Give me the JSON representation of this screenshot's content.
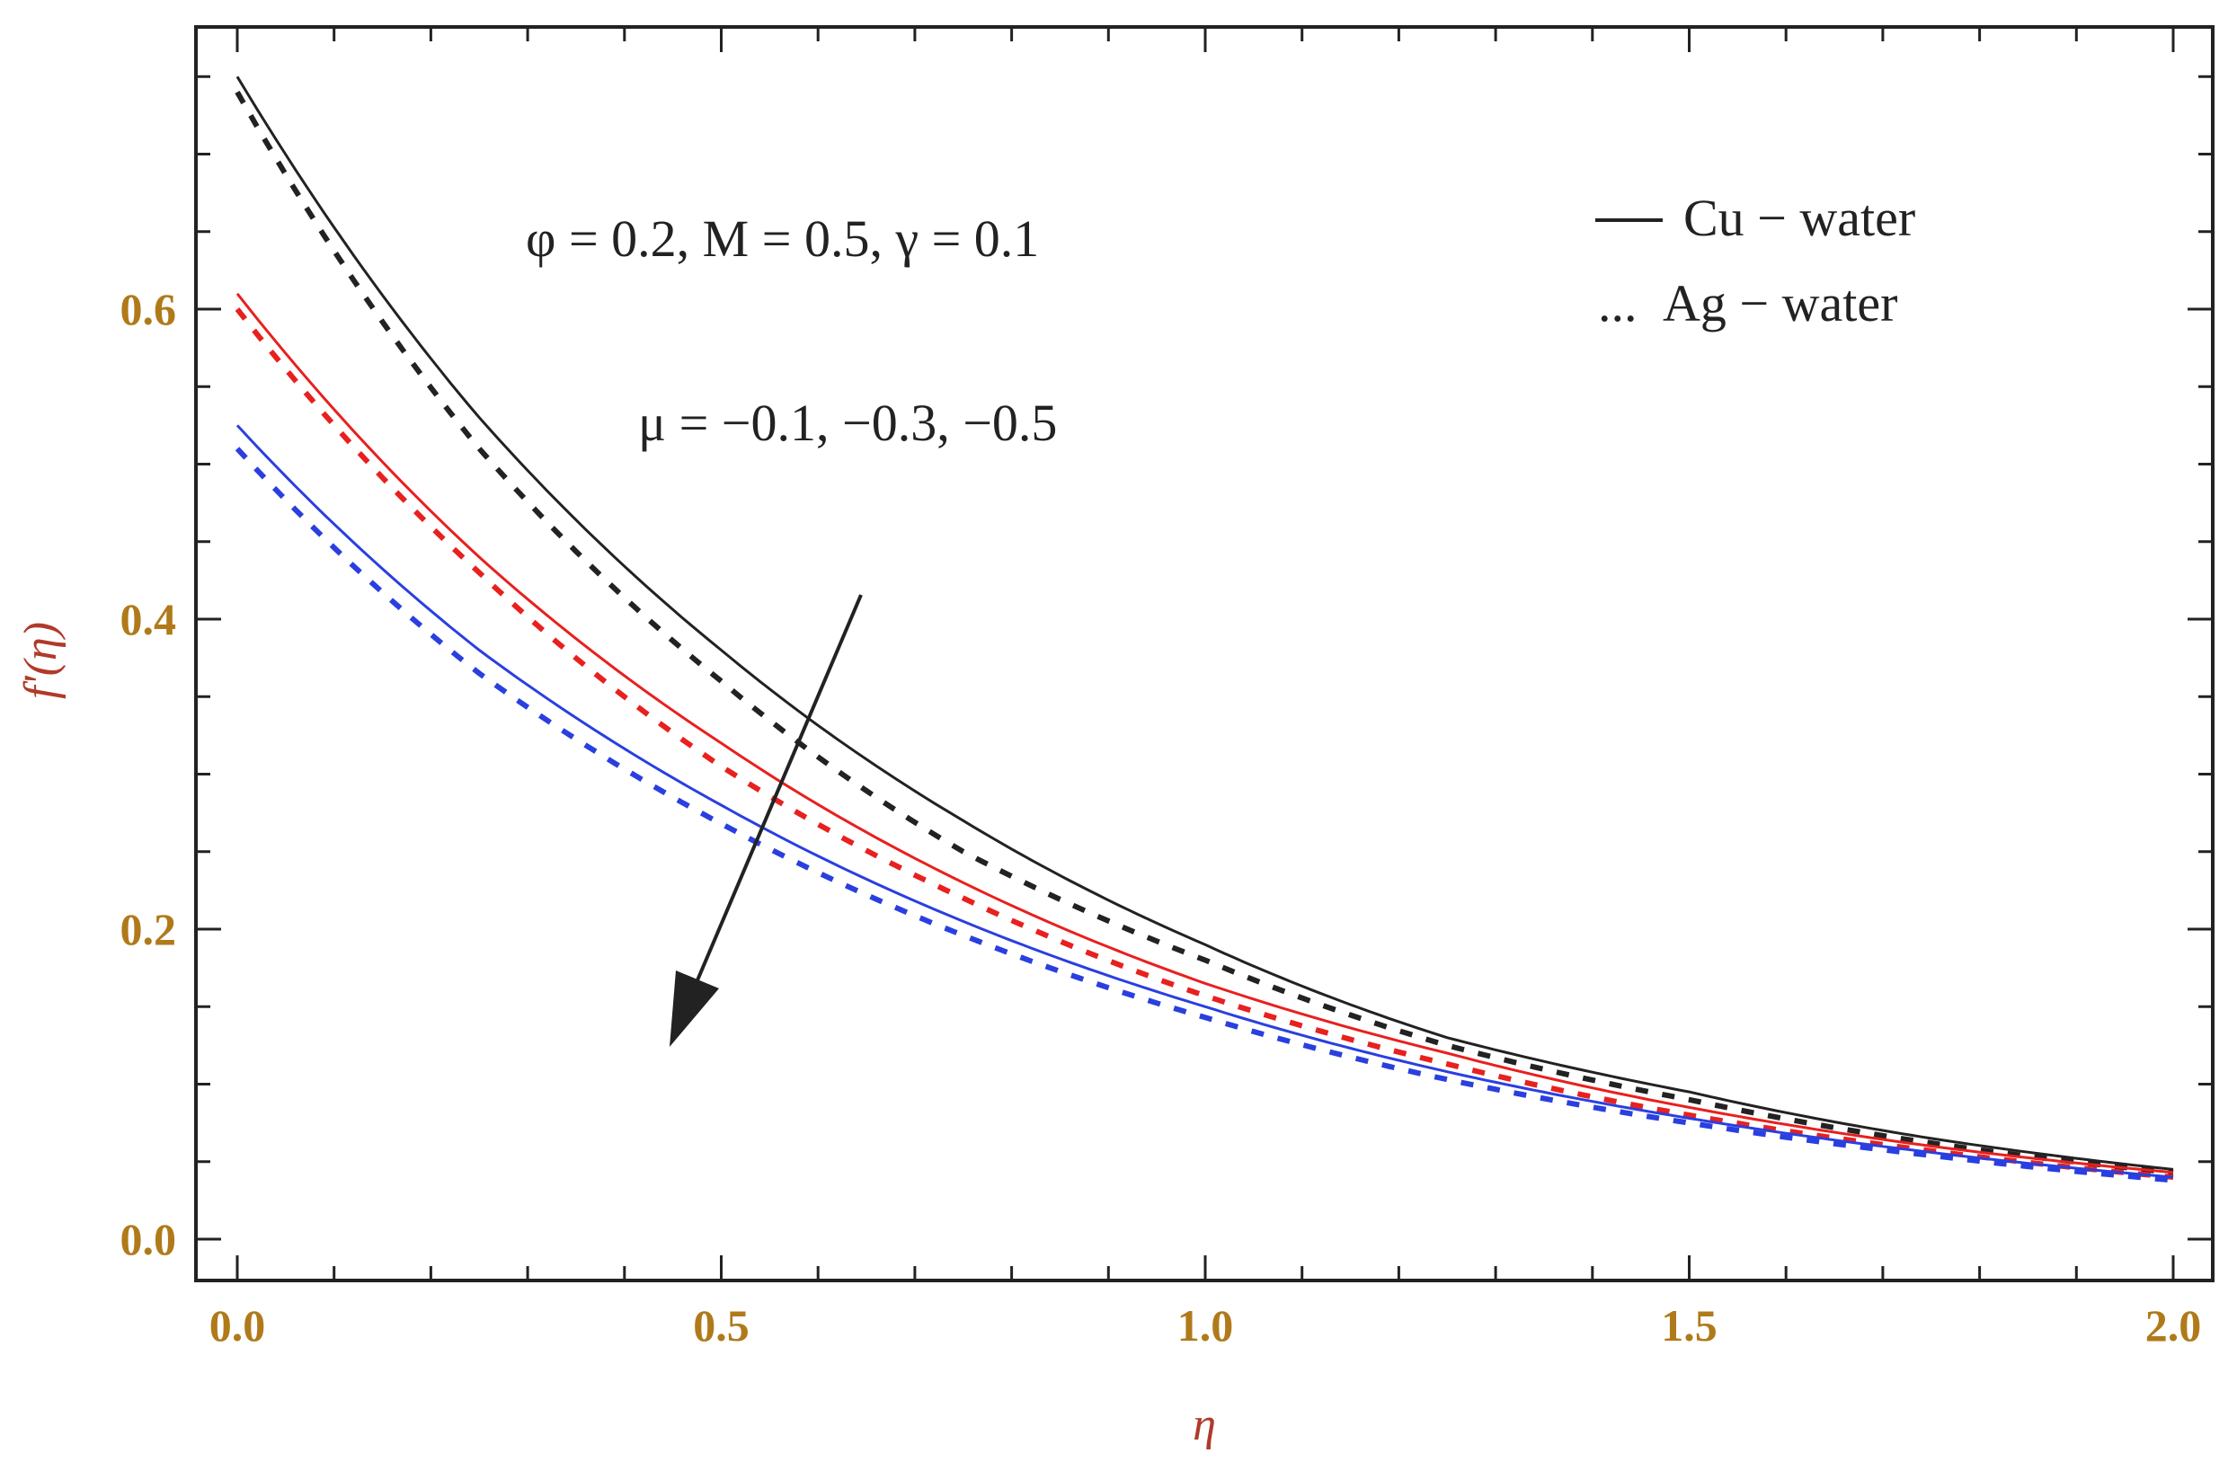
{
  "chart_data": {
    "type": "line",
    "xlabel": "η",
    "ylabel": "f'(η)",
    "xlim": [
      0,
      2.0
    ],
    "ylim": [
      0,
      0.75
    ],
    "x_ticks": [
      "0.0",
      "0.5",
      "1.0",
      "1.5",
      "2.0"
    ],
    "y_ticks": [
      "0.0",
      "0.2",
      "0.4",
      "0.6"
    ],
    "grid": false,
    "legend_position": "top-right",
    "legend": [
      {
        "label": "Cu − water",
        "style": "solid"
      },
      {
        "label": "Ag − water",
        "style": "dotted"
      }
    ],
    "annotations": {
      "params": "φ = 0.2, M = 0.5, γ = 0.1",
      "mu": "μ = −0.1,  −0.3,  −0.5"
    },
    "colors": {
      "black": "#222222",
      "red": "#e8201e",
      "blue": "#2a3fe0",
      "tick": "#b07a1a",
      "axis_label": "#b03a2a"
    },
    "series": [
      {
        "fluid": "Cu − water",
        "mu": -0.1,
        "color": "black",
        "style": "solid",
        "x": [
          0,
          0.25,
          0.5,
          0.75,
          1.0,
          1.25,
          1.5,
          1.75,
          2.0
        ],
        "y": [
          0.75,
          0.53,
          0.38,
          0.27,
          0.19,
          0.13,
          0.095,
          0.065,
          0.045
        ]
      },
      {
        "fluid": "Ag − water",
        "mu": -0.1,
        "color": "black",
        "style": "dotted",
        "x": [
          0,
          0.25,
          0.5,
          0.75,
          1.0,
          1.25,
          1.5,
          1.75,
          2.0
        ],
        "y": [
          0.74,
          0.51,
          0.36,
          0.25,
          0.18,
          0.125,
          0.09,
          0.062,
          0.043
        ]
      },
      {
        "fluid": "Cu − water",
        "mu": -0.3,
        "color": "red",
        "style": "solid",
        "x": [
          0,
          0.25,
          0.5,
          0.75,
          1.0,
          1.25,
          1.5,
          1.75,
          2.0
        ],
        "y": [
          0.61,
          0.44,
          0.32,
          0.23,
          0.165,
          0.12,
          0.085,
          0.06,
          0.043
        ]
      },
      {
        "fluid": "Ag − water",
        "mu": -0.3,
        "color": "red",
        "style": "dotted",
        "x": [
          0,
          0.25,
          0.5,
          0.75,
          1.0,
          1.25,
          1.5,
          1.75,
          2.0
        ],
        "y": [
          0.6,
          0.43,
          0.305,
          0.22,
          0.157,
          0.113,
          0.08,
          0.057,
          0.04
        ]
      },
      {
        "fluid": "Cu − water",
        "mu": -0.5,
        "color": "blue",
        "style": "solid",
        "x": [
          0,
          0.25,
          0.5,
          0.75,
          1.0,
          1.25,
          1.5,
          1.75,
          2.0
        ],
        "y": [
          0.525,
          0.38,
          0.28,
          0.205,
          0.15,
          0.108,
          0.078,
          0.056,
          0.04
        ]
      },
      {
        "fluid": "Ag − water",
        "mu": -0.5,
        "color": "blue",
        "style": "dotted",
        "x": [
          0,
          0.25,
          0.5,
          0.75,
          1.0,
          1.25,
          1.5,
          1.75,
          2.0
        ],
        "y": [
          0.51,
          0.365,
          0.268,
          0.196,
          0.143,
          0.103,
          0.075,
          0.054,
          0.038
        ]
      }
    ]
  }
}
